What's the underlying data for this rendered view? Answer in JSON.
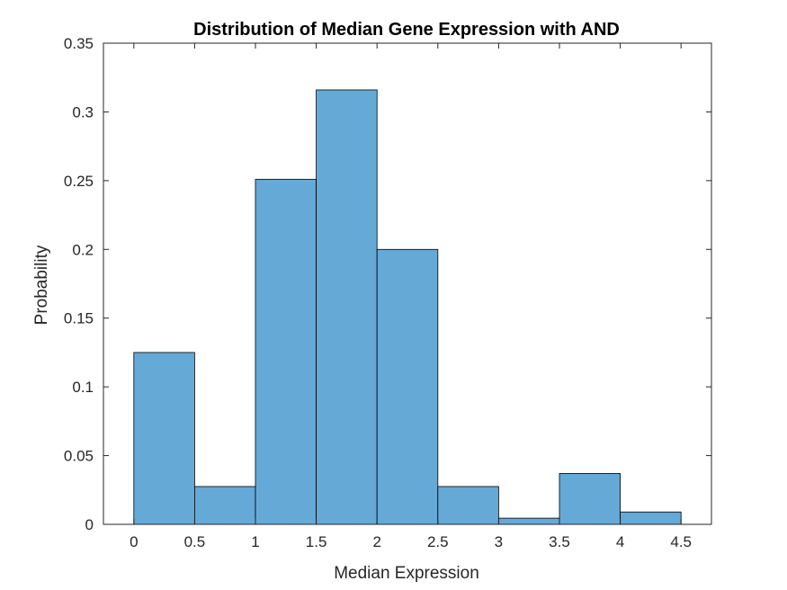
{
  "chart_data": {
    "type": "bar",
    "title": "Distribution of Median Gene Expression with AND",
    "xlabel": "Median Expression",
    "ylabel": "Probability",
    "bin_edges": [
      0,
      0.5,
      1,
      1.5,
      2,
      2.5,
      3,
      3.5,
      4,
      4.5
    ],
    "values": [
      0.125,
      0.0275,
      0.251,
      0.316,
      0.2,
      0.0275,
      0.0045,
      0.037,
      0.009
    ],
    "xlim": [
      -0.25,
      4.75
    ],
    "ylim": [
      0,
      0.35
    ],
    "xticks": [
      0,
      0.5,
      1,
      1.5,
      2,
      2.5,
      3,
      3.5,
      4,
      4.5
    ],
    "xtick_labels": [
      "0",
      "0.5",
      "1",
      "1.5",
      "2",
      "2.5",
      "3",
      "3.5",
      "4",
      "4.5"
    ],
    "yticks": [
      0,
      0.05,
      0.1,
      0.15,
      0.2,
      0.25,
      0.3,
      0.35
    ],
    "ytick_labels": [
      "0",
      "0.05",
      "0.1",
      "0.15",
      "0.2",
      "0.25",
      "0.3",
      "0.35"
    ],
    "grid": false,
    "bar_color": "#65a9d7",
    "edge_color": "#000000"
  }
}
